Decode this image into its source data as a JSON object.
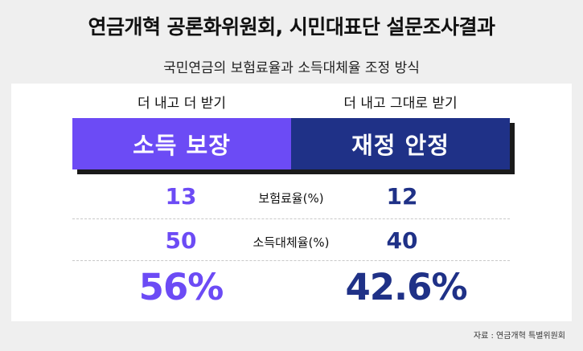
{
  "title": "연금개혁 공론화위원회, 시민대표단 설문조사결과",
  "subtitle": "국민연금의 보험료율과 소득대체율 조정 방식",
  "options": {
    "left": {
      "heading": "더 내고 더 받기",
      "label": "소득 보장",
      "contribution_rate": "13",
      "replacement_rate": "50",
      "result": "56%",
      "color": "#6c4bf5"
    },
    "right": {
      "heading": "더 내고 그대로 받기",
      "label": "재정 안정",
      "contribution_rate": "12",
      "replacement_rate": "40",
      "result": "42.6%",
      "color": "#1f3187"
    }
  },
  "rows": {
    "contribution_label": "보험료율(%)",
    "replacement_label": "소득대체율(%)"
  },
  "source": "자료 : 연금개혁 특별위원회"
}
